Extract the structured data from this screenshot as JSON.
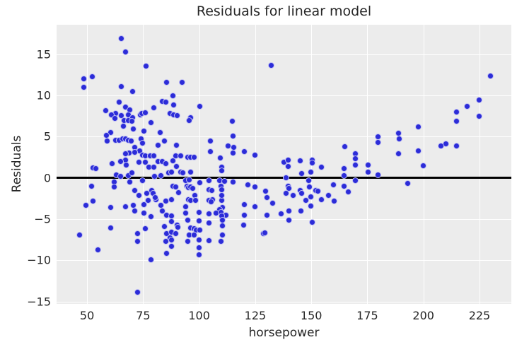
{
  "chart_data": {
    "type": "scatter",
    "title": "Residuals for linear model",
    "xlabel": "horsepower",
    "ylabel": "Residuals",
    "xlim": [
      36.4,
      239.2
    ],
    "ylim": [
      -15.3,
      18.6
    ],
    "x_ticks": [
      50,
      75,
      100,
      125,
      150,
      175,
      200,
      225
    ],
    "x_tick_labels": [
      "50",
      "75",
      "100",
      "125",
      "150",
      "175",
      "200",
      "225"
    ],
    "y_ticks": [
      -15,
      -10,
      -5,
      0,
      5,
      10,
      15
    ],
    "y_tick_labels": [
      "−15",
      "−10",
      "−5",
      "0",
      "5",
      "10",
      "15"
    ],
    "grid": true,
    "legend": "none",
    "reference_line_y": 0,
    "colors": {
      "point": "#2c2cd8",
      "point_edge": "rgba(255,255,255,0.7)",
      "plot_bg": "#ececec",
      "grid": "#ffffff",
      "zero_line": "#000000",
      "text": "#262626"
    },
    "series": [
      {
        "name": "residuals",
        "points": [
          [
            65.4,
            16.9
          ],
          [
            67.3,
            15.3
          ],
          [
            76.4,
            13.6
          ],
          [
            52.2,
            12.3
          ],
          [
            48.4,
            12.0
          ],
          [
            48.4,
            11.0
          ],
          [
            85.3,
            11.6
          ],
          [
            65.4,
            11.1
          ],
          [
            70.4,
            10.5
          ],
          [
            64.4,
            9.2
          ],
          [
            67.3,
            8.6
          ],
          [
            58.2,
            8.2
          ],
          [
            69.2,
            8.3
          ],
          [
            62.6,
            7.8
          ],
          [
            61.0,
            7.7
          ],
          [
            65.4,
            7.6
          ],
          [
            68.3,
            7.7
          ],
          [
            73.9,
            7.7
          ],
          [
            74.5,
            7.8
          ],
          [
            76.1,
            7.9
          ],
          [
            79.9,
            8.5
          ],
          [
            83.7,
            9.3
          ],
          [
            85.0,
            9.2
          ],
          [
            87.1,
            7.8
          ],
          [
            70.4,
            7.3
          ],
          [
            132.2,
            13.7
          ],
          [
            92.5,
            11.6
          ],
          [
            88.4,
            10.0
          ],
          [
            88.7,
            8.9
          ],
          [
            100.3,
            8.7
          ],
          [
            88.7,
            7.7
          ],
          [
            90.3,
            7.6
          ],
          [
            96.3,
            7.3
          ],
          [
            230.0,
            12.4
          ],
          [
            224.7,
            9.5
          ],
          [
            219.6,
            8.7
          ],
          [
            214.9,
            8.0
          ],
          [
            224.7,
            7.5
          ],
          [
            62.3,
            7.2
          ],
          [
            66.4,
            7.0
          ],
          [
            68.3,
            7.0
          ],
          [
            70.1,
            6.9
          ],
          [
            66.1,
            6.3
          ],
          [
            78.6,
            6.7
          ],
          [
            70.5,
            5.9
          ],
          [
            75.2,
            5.7
          ],
          [
            60.4,
            5.5
          ],
          [
            58.5,
            5.2
          ],
          [
            82.7,
            5.5
          ],
          [
            59.1,
            4.5
          ],
          [
            62.7,
            4.6
          ],
          [
            64.3,
            4.6
          ],
          [
            65.9,
            4.7
          ],
          [
            67.3,
            4.7
          ],
          [
            68.5,
            4.6
          ],
          [
            69.8,
            4.5
          ],
          [
            74.2,
            4.7
          ],
          [
            74.6,
            4.2
          ],
          [
            81.8,
            4.0
          ],
          [
            84.5,
            4.5
          ],
          [
            71.4,
            3.7
          ],
          [
            73.5,
            3.3
          ],
          [
            68.8,
            3.0
          ],
          [
            67.3,
            2.9
          ],
          [
            71.4,
            3.1
          ],
          [
            74.6,
            2.8
          ],
          [
            76.1,
            2.7
          ],
          [
            78.2,
            2.7
          ],
          [
            79.8,
            2.7
          ],
          [
            81.8,
            2.0
          ],
          [
            83.4,
            2.0
          ],
          [
            67.0,
            2.2
          ],
          [
            67.6,
            1.6
          ],
          [
            65.1,
            2.0
          ],
          [
            61.3,
            1.7
          ],
          [
            52.8,
            1.2
          ],
          [
            53.8,
            1.1
          ],
          [
            73.0,
            1.9
          ],
          [
            76.1,
            1.9
          ],
          [
            77.7,
            1.3
          ],
          [
            79.8,
            1.3
          ],
          [
            85.0,
            1.7
          ],
          [
            86.3,
            0.6
          ],
          [
            63.0,
            0.4
          ],
          [
            65.1,
            0.2
          ],
          [
            68.3,
            0.3
          ],
          [
            70.1,
            0.6
          ],
          [
            74.6,
            -0.3
          ],
          [
            80.2,
            0.2
          ],
          [
            83.0,
            0.3
          ],
          [
            62.0,
            -0.5
          ],
          [
            69.2,
            -0.5
          ],
          [
            51.9,
            -1.0
          ],
          [
            62.0,
            -1.1
          ],
          [
            71.4,
            -1.5
          ],
          [
            73.0,
            -2.1
          ],
          [
            76.7,
            -1.9
          ],
          [
            78.7,
            -1.5
          ],
          [
            79.3,
            -1.9
          ],
          [
            80.8,
            -2.6
          ],
          [
            77.1,
            -2.7
          ],
          [
            80.4,
            -2.4
          ],
          [
            52.5,
            -2.8
          ],
          [
            49.4,
            -3.3
          ],
          [
            60.4,
            -3.6
          ],
          [
            67.3,
            -3.5
          ],
          [
            70.5,
            -3.3
          ],
          [
            75.2,
            -3.2
          ],
          [
            83.0,
            -3.3
          ],
          [
            85.0,
            -2.8
          ],
          [
            87.5,
            -2.6
          ],
          [
            95.6,
            7.0
          ],
          [
            114.8,
            6.9
          ],
          [
            115.2,
            5.1
          ],
          [
            105.1,
            4.5
          ],
          [
            90.0,
            4.0
          ],
          [
            112.9,
            3.9
          ],
          [
            115.5,
            3.7
          ],
          [
            105.1,
            3.2
          ],
          [
            115.1,
            3.0
          ],
          [
            120.2,
            3.2
          ],
          [
            124.9,
            2.8
          ],
          [
            89.4,
            2.7
          ],
          [
            91.9,
            2.7
          ],
          [
            95.0,
            2.5
          ],
          [
            96.2,
            2.5
          ],
          [
            97.8,
            2.5
          ],
          [
            88.4,
            2.1
          ],
          [
            109.5,
            2.4
          ],
          [
            90.0,
            1.4
          ],
          [
            110.1,
            1.3
          ],
          [
            91.9,
            0.7
          ],
          [
            92.8,
            0.6
          ],
          [
            96.3,
            0.7
          ],
          [
            87.8,
            0.7
          ],
          [
            110.1,
            0.9
          ],
          [
            137.9,
            1.9
          ],
          [
            94.1,
            -0.3
          ],
          [
            95.6,
            -0.2
          ],
          [
            100.3,
            -0.6
          ],
          [
            104.5,
            -0.3
          ],
          [
            109.2,
            -0.3
          ],
          [
            111.4,
            -0.4
          ],
          [
            115.2,
            -0.5
          ],
          [
            88.4,
            -1.0
          ],
          [
            89.7,
            -1.1
          ],
          [
            94.6,
            -1.0
          ],
          [
            95.3,
            -1.2
          ],
          [
            96.3,
            -1.1
          ],
          [
            97.2,
            -1.3
          ],
          [
            104.5,
            -1.4
          ],
          [
            109.8,
            -1.0
          ],
          [
            110.1,
            -1.4
          ],
          [
            121.8,
            -0.8
          ],
          [
            124.9,
            -1.1
          ],
          [
            90.9,
            -1.8
          ],
          [
            98.2,
            -2.1
          ],
          [
            95.3,
            -2.6
          ],
          [
            96.3,
            -2.7
          ],
          [
            98.5,
            -2.7
          ],
          [
            104.5,
            -2.7
          ],
          [
            106.0,
            -2.6
          ],
          [
            110.1,
            -2.7
          ],
          [
            110.1,
            -2.1
          ],
          [
            105.7,
            -1.5
          ],
          [
            129.6,
            -1.6
          ],
          [
            130.3,
            -2.4
          ],
          [
            132.8,
            -3.1
          ],
          [
            120.2,
            -3.2
          ],
          [
            124.9,
            -3.5
          ],
          [
            94.1,
            -3.5
          ],
          [
            105.4,
            -2.9
          ],
          [
            110.4,
            -3.6
          ],
          [
            109.2,
            -3.8
          ],
          [
            179.7,
            5.0
          ],
          [
            179.7,
            4.3
          ],
          [
            188.8,
            5.4
          ],
          [
            189.1,
            4.7
          ],
          [
            164.9,
            3.8
          ],
          [
            169.6,
            2.9
          ],
          [
            169.6,
            2.3
          ],
          [
            169.6,
            1.6
          ],
          [
            139.7,
            2.2
          ],
          [
            145.0,
            2.1
          ],
          [
            150.3,
            2.2
          ],
          [
            150.3,
            1.8
          ],
          [
            139.7,
            1.4
          ],
          [
            154.5,
            1.3
          ],
          [
            175.2,
            1.6
          ],
          [
            175.2,
            0.7
          ],
          [
            145.7,
            0.5
          ],
          [
            149.8,
            0.7
          ],
          [
            164.6,
            1.1
          ],
          [
            164.6,
            0.3
          ],
          [
            179.7,
            0.4
          ],
          [
            138.8,
            0.0
          ],
          [
            148.8,
            -0.3
          ],
          [
            139.7,
            -1.0
          ],
          [
            139.9,
            -1.3
          ],
          [
            145.0,
            -1.5
          ],
          [
            149.1,
            -1.1
          ],
          [
            151.9,
            -1.5
          ],
          [
            152.8,
            -1.6
          ],
          [
            159.8,
            -0.8
          ],
          [
            164.6,
            -1.0
          ],
          [
            169.6,
            -0.3
          ],
          [
            166.5,
            -1.7
          ],
          [
            141.9,
            -2.1
          ],
          [
            145.7,
            -1.9
          ],
          [
            138.8,
            -1.9
          ],
          [
            149.8,
            -2.3
          ],
          [
            154.5,
            -2.6
          ],
          [
            147.6,
            -2.7
          ],
          [
            157.6,
            -2.1
          ],
          [
            160.2,
            -2.8
          ],
          [
            149.8,
            -3.4
          ],
          [
            140.0,
            -4.0
          ],
          [
            145.3,
            -4.0
          ],
          [
            214.6,
            6.9
          ],
          [
            197.6,
            6.2
          ],
          [
            188.8,
            2.9
          ],
          [
            207.8,
            3.9
          ],
          [
            209.9,
            4.1
          ],
          [
            214.6,
            3.9
          ],
          [
            197.6,
            3.3
          ],
          [
            199.9,
            1.5
          ],
          [
            192.9,
            -0.7
          ],
          [
            71.4,
            -4.0
          ],
          [
            75.2,
            -4.3
          ],
          [
            78.6,
            -4.7
          ],
          [
            83.4,
            -4.0
          ],
          [
            85.6,
            -4.5
          ],
          [
            46.8,
            -6.9
          ],
          [
            60.4,
            -6.1
          ],
          [
            54.7,
            -8.7
          ],
          [
            72.4,
            -6.8
          ],
          [
            72.4,
            -7.7
          ],
          [
            76.1,
            -6.2
          ],
          [
            78.6,
            -9.9
          ],
          [
            72.4,
            -13.9
          ],
          [
            84.5,
            -5.9
          ],
          [
            85.6,
            -6.8
          ],
          [
            85.0,
            -7.7
          ],
          [
            85.6,
            -9.2
          ],
          [
            87.1,
            -7.3
          ],
          [
            87.8,
            -4.6
          ],
          [
            94.1,
            -4.3
          ],
          [
            99.8,
            -4.2
          ],
          [
            104.5,
            -4.4
          ],
          [
            107.6,
            -4.3
          ],
          [
            109.8,
            -4.2
          ],
          [
            112.0,
            -4.5
          ],
          [
            110.1,
            -4.6
          ],
          [
            120.2,
            -4.5
          ],
          [
            130.3,
            -4.5
          ],
          [
            136.6,
            -4.4
          ],
          [
            95.0,
            -5.1
          ],
          [
            99.8,
            -5.2
          ],
          [
            104.5,
            -5.5
          ],
          [
            110.4,
            -5.1
          ],
          [
            110.4,
            -5.8
          ],
          [
            119.9,
            -5.7
          ],
          [
            87.8,
            -5.3
          ],
          [
            90.3,
            -5.7
          ],
          [
            90.6,
            -6.0
          ],
          [
            96.3,
            -6.1
          ],
          [
            97.8,
            -6.2
          ],
          [
            98.8,
            -6.3
          ],
          [
            100.3,
            -6.3
          ],
          [
            87.8,
            -6.6
          ],
          [
            89.4,
            -6.8
          ],
          [
            95.6,
            -6.9
          ],
          [
            97.8,
            -6.9
          ],
          [
            110.4,
            -6.9
          ],
          [
            128.7,
            -6.8
          ],
          [
            129.3,
            -6.7
          ],
          [
            87.8,
            -7.5
          ],
          [
            95.0,
            -7.7
          ],
          [
            99.8,
            -7.5
          ],
          [
            104.5,
            -7.6
          ],
          [
            109.8,
            -7.7
          ],
          [
            87.8,
            -8.3
          ],
          [
            99.8,
            -8.5
          ],
          [
            99.8,
            -9.3
          ],
          [
            140.0,
            -5.1
          ],
          [
            150.3,
            -5.4
          ]
        ]
      }
    ]
  }
}
